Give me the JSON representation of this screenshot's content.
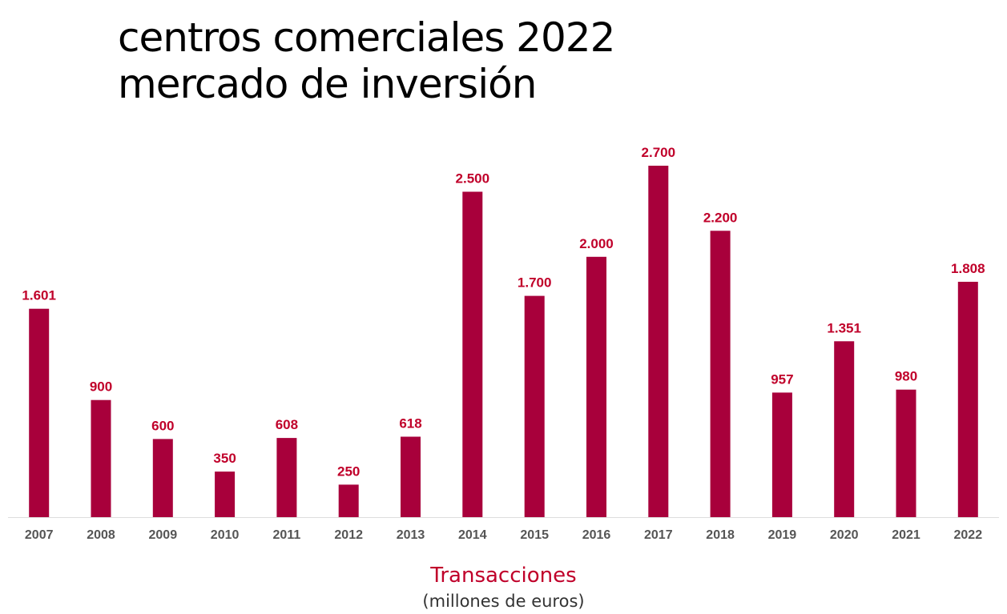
{
  "title_lines": [
    "centros comerciales 2022",
    "mercado de inversión"
  ],
  "colors": {
    "bar": "#A8003B",
    "value_label": "#C0002A",
    "tick_label": "#555555",
    "axis": "#DDDDDD",
    "xlabel": "#C0002A"
  },
  "chart_data": {
    "type": "bar",
    "title": "centros comerciales 2022 mercado de inversión",
    "categories": [
      "2007",
      "2008",
      "2009",
      "2010",
      "2011",
      "2012",
      "2013",
      "2014",
      "2015",
      "2016",
      "2017",
      "2018",
      "2019",
      "2020",
      "2021",
      "2022"
    ],
    "values": [
      1601,
      900,
      600,
      350,
      608,
      250,
      618,
      2500,
      1700,
      2000,
      2700,
      2200,
      957,
      1351,
      980,
      1808
    ],
    "value_labels": [
      "1.601",
      "900",
      "600",
      "350",
      "608",
      "250",
      "618",
      "2.500",
      "1.700",
      "2.000",
      "2.700",
      "2.200",
      "957",
      "1.351",
      "980",
      "1.808"
    ],
    "xlabel": "Transacciones",
    "xlabel_sub": "(millones de euros)",
    "ylabel": "",
    "ylim": [
      0,
      2700
    ],
    "grid": false,
    "legend": "none"
  }
}
